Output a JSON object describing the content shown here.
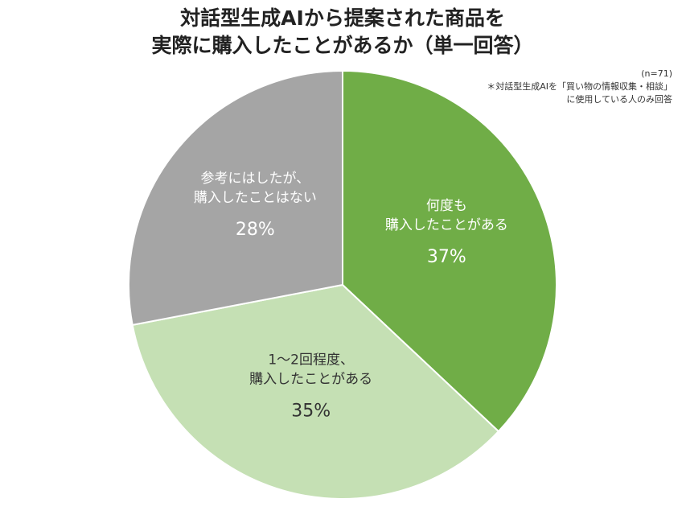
{
  "chart_data": {
    "type": "pie",
    "title": [
      "対話型生成AIから提案された商品を",
      "実際に購入したことがあるか（単一回答）"
    ],
    "notes": [
      "(n=71)",
      "＊対話型生成AIを「買い物の情報収集・相談」",
      "に使用している人のみ回答"
    ],
    "categories": [
      [
        "何度も",
        "購入したことがある"
      ],
      [
        "1～2回程度、",
        "購入したことがある"
      ],
      [
        "参考にはしたが、",
        "購入したことはない"
      ]
    ],
    "values": [
      37,
      35,
      28
    ],
    "value_labels": [
      "37%",
      "35%",
      "28%"
    ],
    "colors": [
      "#70ad47",
      "#c5e0b4",
      "#a5a5a5"
    ],
    "label_colors": [
      "#ffffff",
      "#333333",
      "#ffffff"
    ]
  }
}
